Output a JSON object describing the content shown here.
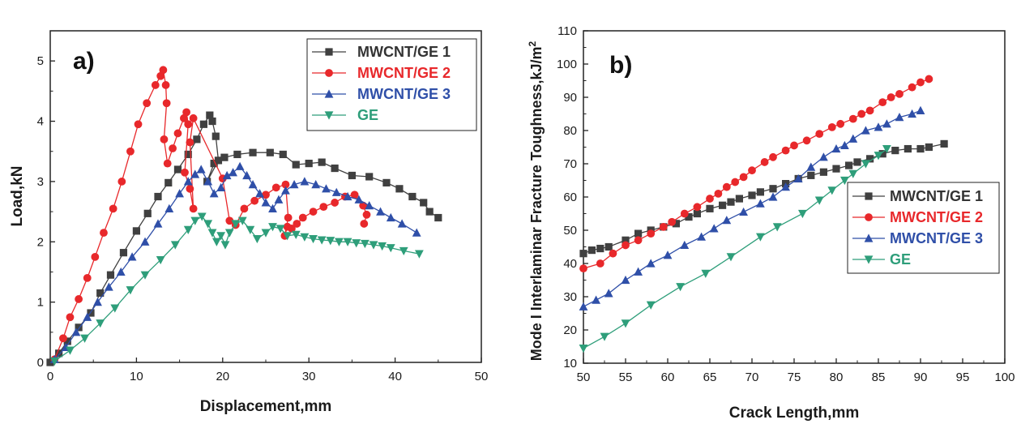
{
  "chart_data": [
    {
      "type": "line",
      "panel_label": "a)",
      "xlabel": "Displacement,mm",
      "ylabel": "Load,kN",
      "xlim": [
        0,
        50
      ],
      "ylim": [
        0,
        5.5
      ],
      "xticks": [
        "0",
        "10",
        "20",
        "30",
        "40",
        "50"
      ],
      "yticks": [
        "0",
        "1",
        "2",
        "3",
        "4",
        "5"
      ],
      "legend_position": "top-right",
      "series": [
        {
          "name": "MWCNT/GE 1",
          "color": "#404040",
          "marker": "square",
          "label_color": "#333333",
          "x": [
            0,
            1,
            2,
            3.3,
            4.7,
            5.8,
            7,
            8.5,
            10,
            11.3,
            12.5,
            13.7,
            14.8,
            16,
            17,
            17.8,
            18.5,
            18.8,
            19.2,
            19.5,
            18.2,
            19,
            20.2,
            21.7,
            23.5,
            25.5,
            27,
            28.5,
            30,
            31.5,
            33,
            35,
            37,
            39,
            40.5,
            42,
            43.3,
            44,
            45
          ],
          "y": [
            0,
            0.15,
            0.35,
            0.58,
            0.82,
            1.15,
            1.45,
            1.82,
            2.18,
            2.47,
            2.75,
            2.98,
            3.2,
            3.45,
            3.7,
            3.95,
            4.1,
            4.0,
            3.75,
            3.35,
            3.0,
            3.3,
            3.4,
            3.45,
            3.48,
            3.48,
            3.45,
            3.28,
            3.3,
            3.32,
            3.22,
            3.1,
            3.08,
            2.98,
            2.88,
            2.75,
            2.65,
            2.5,
            2.4
          ]
        },
        {
          "name": "MWCNT/GE 2",
          "color": "#e8282b",
          "marker": "circle",
          "label_color": "#e8282b",
          "x": [
            0.5,
            1.5,
            2.3,
            3.3,
            4.3,
            5.2,
            6.2,
            7.3,
            8.3,
            9.3,
            10.2,
            11.2,
            12.2,
            12.8,
            13.1,
            13.4,
            13.5,
            13.2,
            13.6,
            14.2,
            14.8,
            15.5,
            15.8,
            16,
            15.6,
            16.2,
            16.6,
            16.2,
            16.6,
            20,
            20.8,
            21.5,
            22.5,
            23.7,
            25,
            26.2,
            27.3,
            27.6,
            27.2,
            27.5,
            28,
            28.6,
            29.3,
            30.5,
            31.7,
            33,
            34.2,
            35.3,
            36.3,
            36.7,
            36.4
          ],
          "y": [
            0.05,
            0.4,
            0.75,
            1.05,
            1.4,
            1.75,
            2.15,
            2.55,
            3.0,
            3.5,
            3.95,
            4.3,
            4.6,
            4.75,
            4.85,
            4.6,
            4.3,
            3.7,
            3.3,
            3.55,
            3.8,
            4.05,
            4.15,
            3.95,
            3.15,
            2.88,
            2.55,
            3.65,
            4.05,
            3.05,
            2.35,
            2.28,
            2.55,
            2.68,
            2.78,
            2.9,
            2.95,
            2.4,
            2.1,
            2.25,
            2.22,
            2.3,
            2.4,
            2.5,
            2.58,
            2.65,
            2.75,
            2.78,
            2.6,
            2.45,
            2.3
          ]
        },
        {
          "name": "MWCNT/GE 3",
          "color": "#2f4fa8",
          "marker": "triangle-up",
          "label_color": "#2f4fa8",
          "x": [
            0.5,
            1.8,
            3,
            4.3,
            5.5,
            6.8,
            8.2,
            9.5,
            11,
            12.5,
            13.8,
            15,
            16,
            16.8,
            17.5,
            18.3,
            19,
            19.8,
            20.5,
            21.2,
            22,
            22.8,
            23.5,
            24.3,
            25,
            25.8,
            26.5,
            27.3,
            28.3,
            29.5,
            30.8,
            32,
            33.2,
            34.5,
            35.8,
            37,
            38.3,
            39.5,
            40.8,
            42.5
          ],
          "y": [
            0.05,
            0.25,
            0.5,
            0.75,
            1.0,
            1.25,
            1.5,
            1.75,
            2.0,
            2.3,
            2.55,
            2.8,
            3.0,
            3.12,
            3.2,
            3.0,
            2.8,
            2.9,
            3.1,
            3.15,
            3.25,
            3.1,
            2.95,
            2.8,
            2.65,
            2.55,
            2.7,
            2.85,
            2.95,
            3.0,
            2.95,
            2.88,
            2.82,
            2.75,
            2.7,
            2.6,
            2.5,
            2.4,
            2.3,
            2.15
          ]
        },
        {
          "name": "GE",
          "color": "#2e9e7a",
          "marker": "triangle-down",
          "label_color": "#2e9e7a",
          "x": [
            0.5,
            2.3,
            4,
            5.8,
            7.5,
            9.3,
            11,
            12.8,
            14.5,
            16,
            16.8,
            17.6,
            18.3,
            18.8,
            19.3,
            19.8,
            20.3,
            20.8,
            21.5,
            22.3,
            23.2,
            24,
            25,
            25.8,
            26.7,
            27.5,
            28.5,
            29.5,
            30.5,
            31.5,
            32.5,
            33.5,
            34.5,
            35.5,
            36.5,
            37.5,
            38.5,
            39.5,
            41,
            42.8
          ],
          "y": [
            0.02,
            0.2,
            0.4,
            0.65,
            0.9,
            1.2,
            1.45,
            1.7,
            1.95,
            2.2,
            2.35,
            2.42,
            2.3,
            2.15,
            2.0,
            2.1,
            1.95,
            2.15,
            2.3,
            2.35,
            2.2,
            2.05,
            2.15,
            2.25,
            2.22,
            2.1,
            2.12,
            2.08,
            2.05,
            2.03,
            2.02,
            2.0,
            2.0,
            1.98,
            1.97,
            1.95,
            1.93,
            1.9,
            1.85,
            1.8
          ]
        }
      ]
    },
    {
      "type": "line",
      "panel_label": "b)",
      "xlabel": "Crack Length,mm",
      "ylabel": "Mode I Interlaminar Fracture Toughness,kJ/m",
      "ylabel_superscript": "2",
      "xlim": [
        50,
        100
      ],
      "ylim": [
        10,
        110
      ],
      "xticks": [
        "50",
        "55",
        "60",
        "65",
        "70",
        "75",
        "80",
        "85",
        "90",
        "95",
        "100"
      ],
      "yticks": [
        "10",
        "20",
        "30",
        "40",
        "50",
        "60",
        "70",
        "80",
        "90",
        "100",
        "110"
      ],
      "legend_position": "center-right",
      "series": [
        {
          "name": "MWCNT/GE 1",
          "color": "#404040",
          "marker": "square",
          "label_color": "#333333",
          "x": [
            50,
            51,
            52,
            53,
            55,
            56.5,
            58,
            59.5,
            61,
            62.5,
            63.5,
            65,
            66.5,
            67.5,
            68.5,
            70,
            71,
            72.5,
            74,
            75.5,
            77,
            78.5,
            80,
            81.5,
            82.5,
            84,
            85.5,
            87,
            88.5,
            90,
            91,
            92.8
          ],
          "y": [
            43,
            44,
            44.5,
            45,
            47,
            49,
            50,
            51,
            52,
            54,
            55,
            56.5,
            57.5,
            58.5,
            59.5,
            60.5,
            61.5,
            62.5,
            64,
            65.5,
            66.5,
            67.5,
            68.5,
            69.5,
            70.5,
            71.5,
            73,
            74,
            74.5,
            74.5,
            75,
            76
          ]
        },
        {
          "name": "MWCNT/GE 2",
          "color": "#e8282b",
          "marker": "circle",
          "label_color": "#e8282b",
          "x": [
            50,
            52,
            53.5,
            55,
            56.5,
            58,
            59.5,
            60.5,
            62,
            63.5,
            65,
            66,
            67,
            68,
            69,
            70,
            71.5,
            72.5,
            74,
            75,
            76.5,
            78,
            79.5,
            80.5,
            82,
            83,
            84,
            85.5,
            86.5,
            87.5,
            89,
            90,
            91
          ],
          "y": [
            38.5,
            40,
            43,
            45.5,
            47,
            49,
            51,
            52.5,
            55,
            57,
            59.5,
            61,
            63,
            64.5,
            66,
            68,
            70.5,
            72,
            74,
            75.5,
            77,
            79,
            81,
            82,
            83.5,
            85,
            86,
            88.5,
            90,
            91,
            93,
            94.5,
            95.5
          ]
        },
        {
          "name": "MWCNT/GE 3",
          "color": "#2f4fa8",
          "marker": "triangle-up",
          "label_color": "#2f4fa8",
          "x": [
            50,
            51.5,
            53,
            55,
            56.5,
            58,
            60,
            62,
            64,
            65.5,
            67,
            69,
            71,
            72.5,
            74,
            75.5,
            77,
            78.5,
            80,
            81,
            82,
            83.5,
            85,
            86,
            87.5,
            89,
            90
          ],
          "y": [
            27,
            29,
            31,
            35,
            37.5,
            40,
            42.5,
            45.5,
            48,
            50.5,
            53,
            55.5,
            58,
            60,
            63,
            65.5,
            69,
            72,
            74.5,
            75.5,
            77.5,
            80,
            81,
            82,
            84,
            85,
            86
          ]
        },
        {
          "name": "GE",
          "color": "#2e9e7a",
          "marker": "triangle-down",
          "label_color": "#2e9e7a",
          "x": [
            50,
            52.5,
            55,
            58,
            61.5,
            64.5,
            67.5,
            71,
            73,
            76,
            78,
            79.5,
            81,
            82,
            83.5,
            85,
            86
          ],
          "y": [
            14.5,
            18,
            22,
            27.5,
            33,
            37,
            42,
            48,
            51,
            55,
            59,
            62,
            65,
            67,
            70,
            72.5,
            74.5
          ]
        }
      ]
    }
  ]
}
